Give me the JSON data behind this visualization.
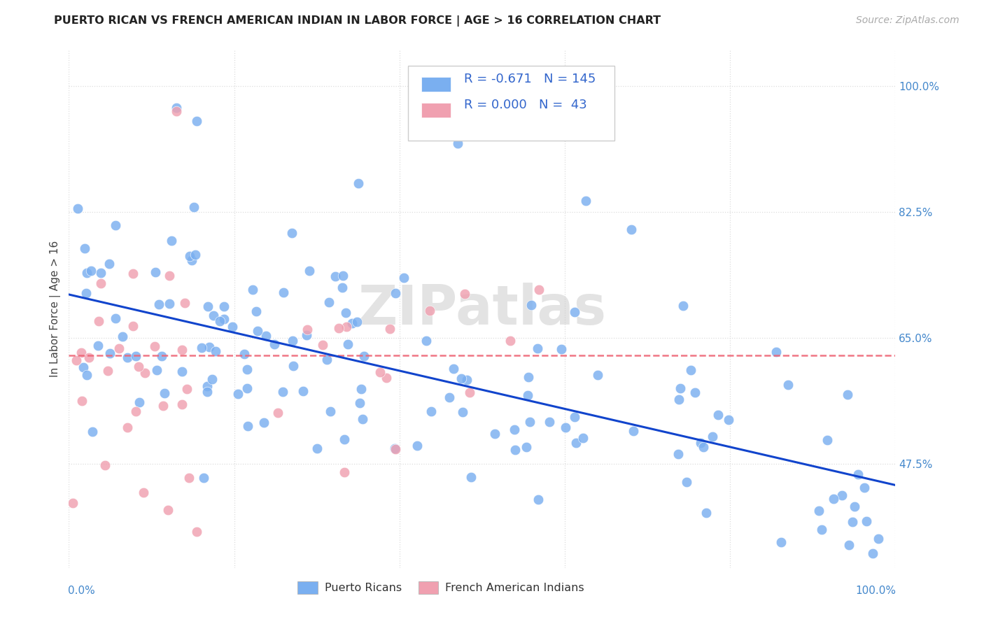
{
  "title": "PUERTO RICAN VS FRENCH AMERICAN INDIAN IN LABOR FORCE | AGE > 16 CORRELATION CHART",
  "source": "Source: ZipAtlas.com",
  "ylabel": "In Labor Force | Age > 16",
  "ytick_labels": [
    "100.0%",
    "82.5%",
    "65.0%",
    "47.5%"
  ],
  "ytick_values": [
    1.0,
    0.825,
    0.65,
    0.475
  ],
  "xmin": 0.0,
  "xmax": 1.0,
  "ymin": 0.33,
  "ymax": 1.05,
  "blue_color": "#7aaff0",
  "pink_color": "#f0a0b0",
  "blue_line_color": "#1144cc",
  "pink_line_color": "#ee6677",
  "watermark": "ZIPatlas",
  "blue_R": -0.671,
  "blue_N": 145,
  "pink_R": 0.0,
  "pink_N": 43,
  "blue_intercept": 0.71,
  "blue_slope": -0.265,
  "pink_intercept": 0.625,
  "pink_slope": 0.0,
  "blue_seed": 12,
  "pink_seed": 7
}
